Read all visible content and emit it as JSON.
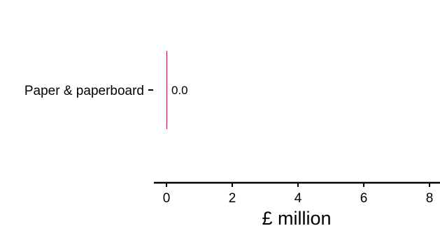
{
  "chart_data": {
    "type": "bar",
    "orientation": "horizontal",
    "categories": [
      "Paper & paperboard"
    ],
    "values": [
      0.0
    ],
    "data_labels": [
      "0.0"
    ],
    "xlabel": "£ million",
    "ylabel": "",
    "xlim": [
      0,
      8
    ],
    "x_ticks": [
      0,
      2,
      4,
      6,
      8
    ],
    "x_tick_labels": [
      "0",
      "2",
      "4",
      "6",
      "8"
    ],
    "grid": false,
    "legend": "none",
    "bar_color": "#b5123a"
  }
}
